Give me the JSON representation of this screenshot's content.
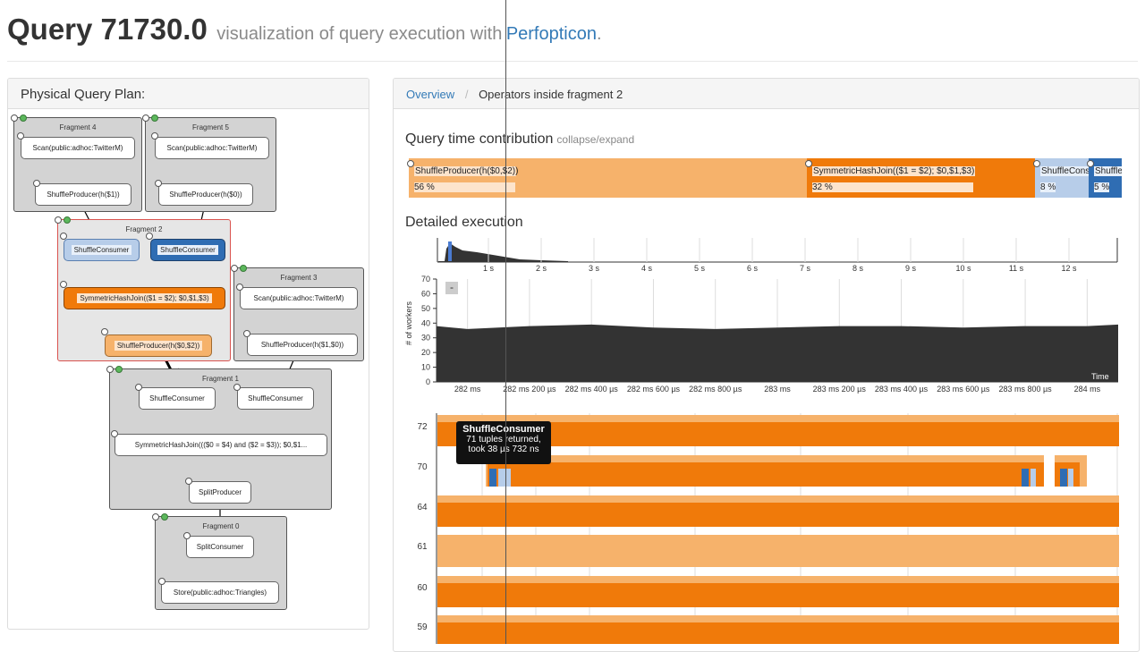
{
  "header": {
    "title": "Query 71730.0",
    "subtitle": "visualization of query execution with",
    "link": "Perfopticon",
    "dot": "."
  },
  "left_panel": {
    "title": "Physical Query Plan:",
    "fragments": [
      {
        "label": "Fragment 4",
        "nodes": [
          "Scan(public:adhoc:TwitterM)",
          "ShuffleProducer(h($1))"
        ]
      },
      {
        "label": "Fragment 5",
        "nodes": [
          "Scan(public:adhoc:TwitterM)",
          "ShuffleProducer(h($0))"
        ]
      },
      {
        "label": "Fragment 2",
        "nodes": [
          "ShuffleConsumer",
          "ShuffleConsumer",
          "SymmetricHashJoin(($1 = $2); $0,$1,$3)",
          "ShuffleProducer(h($0,$2))"
        ]
      },
      {
        "label": "Fragment 3",
        "nodes": [
          "Scan(public:adhoc:TwitterM)",
          "ShuffleProducer(h($1,$0))"
        ]
      },
      {
        "label": "Fragment 1",
        "nodes": [
          "ShuffleConsumer",
          "ShuffleConsumer",
          "SymmetricHashJoin((($0 = $4) and ($2 = $3)); $0,$1...",
          "SplitProducer"
        ]
      },
      {
        "label": "Fragment 0",
        "nodes": [
          "SplitConsumer",
          "Store(public:adhoc:Triangles)"
        ]
      }
    ]
  },
  "right_panel": {
    "breadcrumb": {
      "link": "Overview",
      "sep": "/",
      "current": "Operators inside fragment 2"
    },
    "query_time": {
      "title": "Query time contribution",
      "toggle": "collapse/expand",
      "items": [
        {
          "label": "ShuffleProducer(h($0,$2))",
          "pct": "56 %",
          "value": 56,
          "color": "#f6b26b"
        },
        {
          "label": "SymmetricHashJoin(($1 = $2); $0,$1,$3)",
          "pct": "32 %",
          "value": 32,
          "color": "#f07a0a"
        },
        {
          "label": "ShuffleCons",
          "pct": "8 %",
          "value": 8,
          "color": "#b7cde9"
        },
        {
          "label": "ShuffleC",
          "pct": "5 %",
          "value": 5,
          "color": "#2f6db3"
        }
      ]
    },
    "detailed": {
      "title": "Detailed execution",
      "collapse_btn": "-",
      "overview_ticks": [
        "1 s",
        "2 s",
        "3 s",
        "4 s",
        "5 s",
        "6 s",
        "7 s",
        "8 s",
        "9 s",
        "10 s",
        "11 s",
        "12 s"
      ],
      "y_label": "# of workers",
      "y_ticks": [
        "0",
        "10",
        "20",
        "30",
        "40",
        "50",
        "60",
        "70"
      ],
      "time_label": "Time",
      "x_ticks": [
        "282 ms",
        "282 ms 200 µs",
        "282 ms 400 µs",
        "282 ms 600 µs",
        "282 ms 800 µs",
        "283 ms",
        "283 ms 200 µs",
        "283 ms 400 µs",
        "283 ms 600 µs",
        "283 ms 800 µs",
        "284 ms"
      ],
      "lanes": [
        "72",
        "70",
        "64",
        "61",
        "60",
        "59"
      ]
    },
    "tooltip": {
      "title": "ShuffleConsumer",
      "line1": "71 tuples returned,",
      "line2": "took 38 µs 732 ns"
    }
  },
  "chart_data": {
    "type": "area",
    "title": "",
    "xlabel": "Time",
    "ylabel": "# of workers",
    "ylim": [
      0,
      70
    ],
    "xlim": [
      281.9,
      284.1
    ],
    "x": [
      281.9,
      282.0,
      282.2,
      282.4,
      282.6,
      282.8,
      283.0,
      283.2,
      283.4,
      283.6,
      283.8,
      284.0,
      284.1
    ],
    "series": [
      {
        "values": [
          38,
          36,
          38,
          39,
          37,
          36,
          37,
          38,
          38,
          37,
          38,
          38,
          39
        ]
      }
    ]
  }
}
